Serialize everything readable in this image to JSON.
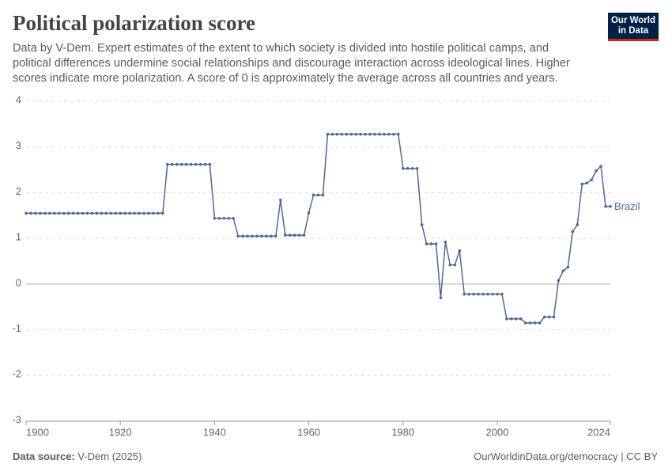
{
  "chart_data": {
    "type": "line",
    "title": "Political polarization score",
    "subtitle": "Data by V-Dem. Expert estimates of the extent to which society is divided into hostile political camps, and political differences undermine social relationships and discourage interaction across ideological lines. Higher scores indicate more polarization. A score of 0 is approximately the average across all countries and years.",
    "x": [
      1900,
      1901,
      1902,
      1903,
      1904,
      1905,
      1906,
      1907,
      1908,
      1909,
      1910,
      1911,
      1912,
      1913,
      1914,
      1915,
      1916,
      1917,
      1918,
      1919,
      1920,
      1921,
      1922,
      1923,
      1924,
      1925,
      1926,
      1927,
      1928,
      1929,
      1930,
      1931,
      1932,
      1933,
      1934,
      1935,
      1936,
      1937,
      1938,
      1939,
      1940,
      1941,
      1942,
      1943,
      1944,
      1945,
      1946,
      1947,
      1948,
      1949,
      1950,
      1951,
      1952,
      1953,
      1954,
      1955,
      1956,
      1957,
      1958,
      1959,
      1960,
      1961,
      1962,
      1963,
      1964,
      1965,
      1966,
      1967,
      1968,
      1969,
      1970,
      1971,
      1972,
      1973,
      1974,
      1975,
      1976,
      1977,
      1978,
      1979,
      1980,
      1981,
      1982,
      1983,
      1984,
      1985,
      1986,
      1987,
      1988,
      1989,
      1990,
      1991,
      1992,
      1993,
      1994,
      1995,
      1996,
      1997,
      1998,
      1999,
      2000,
      2001,
      2002,
      2003,
      2004,
      2005,
      2006,
      2007,
      2008,
      2009,
      2010,
      2011,
      2012,
      2013,
      2014,
      2015,
      2016,
      2017,
      2018,
      2019,
      2020,
      2021,
      2022,
      2023,
      2024
    ],
    "series": [
      {
        "name": "Brazil",
        "color": "#4c6a9c",
        "values": [
          1.55,
          1.55,
          1.55,
          1.55,
          1.55,
          1.55,
          1.55,
          1.55,
          1.55,
          1.55,
          1.55,
          1.55,
          1.55,
          1.55,
          1.55,
          1.55,
          1.55,
          1.55,
          1.55,
          1.55,
          1.55,
          1.55,
          1.55,
          1.55,
          1.55,
          1.55,
          1.55,
          1.55,
          1.55,
          1.55,
          2.62,
          2.62,
          2.62,
          2.62,
          2.62,
          2.62,
          2.62,
          2.62,
          2.62,
          2.62,
          1.44,
          1.44,
          1.44,
          1.44,
          1.44,
          1.05,
          1.05,
          1.05,
          1.05,
          1.05,
          1.05,
          1.05,
          1.05,
          1.05,
          1.84,
          1.07,
          1.07,
          1.07,
          1.07,
          1.07,
          1.56,
          1.95,
          1.95,
          1.95,
          3.28,
          3.28,
          3.28,
          3.28,
          3.28,
          3.28,
          3.28,
          3.28,
          3.28,
          3.28,
          3.28,
          3.28,
          3.28,
          3.28,
          3.28,
          3.28,
          2.53,
          2.53,
          2.53,
          2.53,
          1.3,
          0.88,
          0.88,
          0.88,
          -0.3,
          0.92,
          0.42,
          0.42,
          0.73,
          -0.22,
          -0.22,
          -0.22,
          -0.22,
          -0.22,
          -0.22,
          -0.22,
          -0.22,
          -0.22,
          -0.76,
          -0.76,
          -0.76,
          -0.76,
          -0.85,
          -0.85,
          -0.85,
          -0.85,
          -0.72,
          -0.72,
          -0.72,
          0.08,
          0.29,
          0.37,
          1.15,
          1.3,
          2.19,
          2.21,
          2.28,
          2.48,
          2.58,
          1.7,
          1.7
        ]
      }
    ],
    "xlim": [
      1900,
      2024
    ],
    "xticks": [
      1900,
      1920,
      1940,
      1960,
      1980,
      2000,
      2024
    ],
    "ylim": [
      -3,
      4
    ],
    "yticks": [
      -3,
      -2,
      -1,
      0,
      1,
      2,
      3,
      4
    ],
    "grid": true,
    "source_label": "Data source:",
    "source": "V-Dem (2025)",
    "footer_right": "OurWorldinData.org/democracy | CC BY",
    "logo": {
      "line1": "Our World",
      "line2": "in Data"
    }
  }
}
